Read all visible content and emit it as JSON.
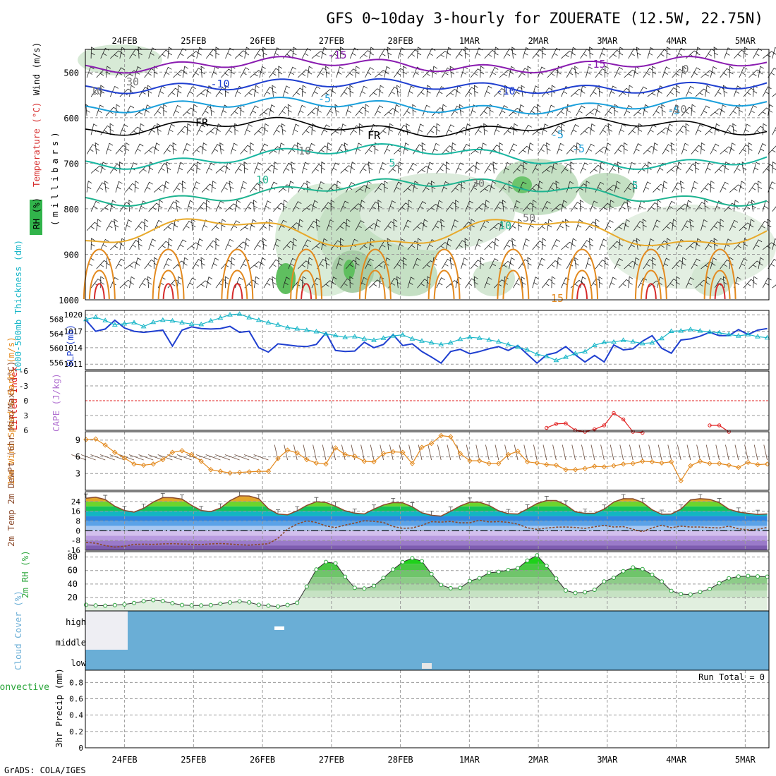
{
  "title": "GFS 0~10day 3-hourly for ZOUERATE (12.5W, 22.75N)",
  "footer": "GrADS: COLA/IGES",
  "colors": {
    "rh_green": "#31b44b",
    "temp_red": "#d62a2a",
    "temp_orange": "#e38a1f",
    "temp_yellow": "#e8a92a",
    "blue": "#1f3fd0",
    "cyan": "#18b6c8",
    "teal": "#18b6a0",
    "purple": "#8a1cb0",
    "dew": "#8b4a2b",
    "cloud": "#6aaed6",
    "rain_green": "#2aa53a",
    "conv_red": "#e22222"
  },
  "chart_data": [
    {
      "panel": "upper-air",
      "type": "heatmap",
      "ylabel_parts": [
        "RH (%)",
        "Temperature (°C)",
        "Wind (m/s)"
      ],
      "ylabel_units": "(millibars)",
      "y_ticks": [
        500,
        600,
        700,
        800,
        900,
        1000
      ],
      "ylim": [
        450,
        1000
      ],
      "x_ticks": [
        "24FEB",
        "25FEB",
        "26FEB",
        "27FEB",
        "28FEB",
        "1MAR",
        "2MAR",
        "3MAR",
        "4MAR",
        "5MAR"
      ],
      "contour_labels": [
        "-15",
        "-15",
        "-10",
        "-10",
        "-5",
        "-5",
        "-5",
        "-5",
        "FR",
        "FR",
        "5",
        "5",
        "10",
        "10",
        "15",
        "30",
        "30",
        "10",
        "10",
        "0",
        "-10",
        "50"
      ]
    },
    {
      "panel": "thickness-slp",
      "type": "line",
      "left_label": "1000-500mb Thickness (dm)",
      "right_label": "SLP (mb)",
      "left_ticks": [
        556,
        560,
        564,
        568
      ],
      "right_ticks": [
        1011,
        1014,
        1017,
        1020
      ],
      "series": [
        {
          "name": "Thickness",
          "color": "#18b6c8",
          "values": [
            568,
            568.6,
            567.7,
            566.5,
            566.8,
            567.1,
            566,
            567.2,
            567.8,
            567.6,
            567.1,
            566.7,
            566.6,
            567.6,
            568.4,
            569.3,
            569.5,
            568.5,
            567.8,
            567.1,
            566.5,
            565.7,
            565.4,
            565,
            564.6,
            564,
            563.5,
            563,
            563.2,
            562.6,
            562.2,
            562.8,
            563.4,
            563.7,
            562.6,
            562,
            561.5,
            561,
            561.5,
            562.5,
            563,
            562.8,
            562.3,
            561.8,
            561,
            560.3,
            559.5,
            558.3,
            557.7,
            556.6,
            557.5,
            558.5,
            559,
            560.8,
            561.6,
            561.7,
            562.2,
            561.8,
            561.3,
            561.5,
            562.7,
            564.7,
            564.8,
            565.2,
            564.8,
            564.5,
            564.3,
            563.8,
            563.4,
            563.8,
            563.2,
            562.9
          ]
        },
        {
          "name": "SLP",
          "color": "#1f3fd0",
          "values": [
            1019,
            1017,
            1017.4,
            1019,
            1017.6,
            1017,
            1016.8,
            1017,
            1017.2,
            1014.3,
            1017.2,
            1017.8,
            1017.5,
            1017.4,
            1017.5,
            1017.9,
            1016.8,
            1017,
            1014,
            1013.2,
            1014.7,
            1014.5,
            1014.3,
            1014.2,
            1014.6,
            1016.7,
            1013.5,
            1013.3,
            1013.4,
            1015,
            1014,
            1014.6,
            1016.4,
            1014.4,
            1014.7,
            1013.3,
            1012.3,
            1011.2,
            1013.3,
            1013.7,
            1012.9,
            1013.3,
            1013.8,
            1014.2,
            1013.5,
            1014.4,
            1012.8,
            1011.2,
            1012.7,
            1013.1,
            1014.2,
            1012.7,
            1011.4,
            1012.6,
            1011.4,
            1014.5,
            1013.6,
            1013.8,
            1015.2,
            1016.2,
            1013.9,
            1013,
            1015.4,
            1015.6,
            1016.1,
            1016.8,
            1016.2,
            1016.2,
            1017.3,
            1016.4,
            1017.2,
            1017.5
          ]
        }
      ]
    },
    {
      "panel": "instability",
      "type": "line",
      "left_label": "Lifted Index",
      "right_label": "CAPE (J/kg)",
      "left_ticks": [
        -6,
        -3,
        0,
        3,
        6
      ],
      "series": [
        {
          "name": "Lifted Index",
          "color": "#e22222",
          "values": [
            null,
            null,
            null,
            null,
            null,
            null,
            null,
            null,
            null,
            null,
            null,
            null,
            null,
            null,
            null,
            null,
            null,
            null,
            null,
            null,
            null,
            null,
            null,
            null,
            null,
            null,
            null,
            null,
            null,
            null,
            null,
            null,
            null,
            null,
            null,
            null,
            null,
            null,
            null,
            null,
            null,
            null,
            null,
            null,
            null,
            null,
            null,
            null,
            5.5,
            4.7,
            4.6,
            6,
            6.3,
            5.8,
            5,
            2.5,
            3.8,
            6.3,
            6.5,
            null,
            null,
            null,
            null,
            null,
            null,
            5,
            5,
            6.3,
            null,
            null,
            null,
            null
          ]
        }
      ]
    },
    {
      "panel": "wind10m",
      "type": "line",
      "ylabel": "10m Wind Speed & Barbs (m/s)",
      "y_ticks": [
        3,
        6,
        9
      ],
      "series": [
        {
          "name": "10m Wind Speed",
          "color": "#e38a1f",
          "values": [
            9.1,
            9.2,
            8.1,
            6.8,
            5.8,
            4.7,
            4.5,
            4.7,
            5.5,
            6.8,
            7.1,
            6.4,
            5.2,
            3.7,
            3.4,
            3.1,
            3.2,
            3.3,
            3.4,
            3.4,
            5.7,
            7.2,
            6.7,
            5.5,
            4.9,
            4.7,
            7.6,
            6.4,
            6.1,
            5.2,
            5.1,
            6.6,
            6.9,
            6.8,
            4.8,
            7.7,
            8.4,
            9.8,
            9.6,
            6.6,
            5.3,
            5.3,
            4.8,
            4.8,
            6.4,
            7,
            5.1,
            4.9,
            4.6,
            4.5,
            3.7,
            3.7,
            3.9,
            4.3,
            4.2,
            4.4,
            4.7,
            4.8,
            5.2,
            5.1,
            4.9,
            5.1,
            1.7,
            4.4,
            5.2,
            4.8,
            4.8,
            4.5,
            4.1,
            5,
            4.6,
            4.7
          ]
        }
      ]
    },
    {
      "panel": "temperature",
      "type": "area",
      "ylabel": "2m Temp 2m DewPt (6hr Min/Max) (°C)",
      "y_ticks": [
        -16,
        -8,
        0,
        8,
        16,
        24
      ],
      "ylim": [
        -16,
        32
      ],
      "series": [
        {
          "name": "2m Temp",
          "color": "#8b4a2b",
          "values": [
            26.7,
            27.5,
            25.6,
            20.1,
            16.6,
            15.2,
            18.4,
            23.5,
            27.2,
            27.1,
            25.9,
            20.8,
            16.6,
            15.7,
            18.6,
            24.7,
            28.6,
            28.5,
            26.3,
            18.1,
            13.7,
            13.1,
            16.3,
            20.8,
            23.8,
            23.2,
            20.1,
            16.4,
            14.4,
            13.8,
            17.7,
            21.1,
            23.1,
            22.9,
            19.6,
            14.7,
            12.7,
            12,
            16,
            20.3,
            23.4,
            23.4,
            20.8,
            16.4,
            14,
            13.7,
            17.9,
            22.3,
            24.8,
            24.8,
            21.1,
            15.5,
            14.3,
            14.3,
            17.7,
            23.5,
            26.3,
            26.2,
            23.2,
            17.2,
            13.5,
            13.7,
            17.7,
            25.3,
            26.3,
            25.8,
            23,
            17.7,
            15.3,
            14.3,
            13.4,
            13.8
          ]
        },
        {
          "name": "2m DewPt",
          "color": "#8b4a2b",
          "values": [
            -9.5,
            -10.2,
            -12.2,
            -13.4,
            -12.7,
            -11.2,
            -11,
            -11.2,
            -10.8,
            -10.6,
            -10.9,
            -11.2,
            -11.3,
            -10.8,
            -10.5,
            -10.9,
            -11.5,
            -11.8,
            -11.2,
            -10.7,
            -6.1,
            1.3,
            5.5,
            8.1,
            6.8,
            3.9,
            2.6,
            4.6,
            6.3,
            8.2,
            7.7,
            6.8,
            3.5,
            2,
            2.3,
            4.4,
            7.4,
            7.1,
            7.6,
            6.5,
            6.5,
            8.6,
            7.2,
            7.5,
            6.9,
            5.4,
            2.4,
            1.1,
            2.2,
            2.9,
            3.1,
            2.7,
            1.9,
            3.2,
            4.4,
            3,
            3.4,
            1.2,
            -0.8,
            2.4,
            4.5,
            2.5,
            3.8,
            3,
            3,
            2.6,
            2.3,
            3.7,
            1.6,
            0.8,
            1.2,
            2.7
          ]
        }
      ]
    },
    {
      "panel": "rh2m",
      "type": "area",
      "ylabel": "2m RH (%)",
      "y_ticks": [
        20,
        40,
        60,
        80
      ],
      "series": [
        {
          "name": "2m RH",
          "color": "#2aa53a",
          "values": [
            9,
            8.1,
            7.7,
            8.7,
            9.6,
            11.8,
            14.4,
            16.1,
            14.6,
            11.4,
            8.8,
            8.2,
            8.1,
            8.7,
            10.8,
            12.6,
            14.1,
            12.7,
            9.1,
            7.8,
            6.5,
            8.8,
            12.1,
            36.2,
            61.6,
            72.7,
            70.6,
            50.7,
            34.3,
            33.2,
            37.1,
            49.1,
            61.6,
            72.6,
            78.3,
            73.9,
            54.8,
            38.5,
            33.7,
            34.2,
            44.4,
            48.6,
            56.6,
            58,
            60.8,
            63.4,
            74.8,
            82.5,
            66.9,
            48.1,
            30.4,
            26.7,
            27.8,
            31.4,
            43.7,
            49.3,
            58.9,
            64.5,
            62.1,
            53.8,
            43.7,
            29.7,
            25.1,
            24.4,
            28.1,
            32.6,
            41.2,
            48.4,
            51.1,
            51.9,
            51.2,
            50.8
          ]
        }
      ]
    },
    {
      "panel": "cloud",
      "type": "heatmap",
      "ylabel": "Cloud Cover (%)",
      "levels": [
        "high",
        "middle",
        "low"
      ]
    },
    {
      "panel": "precip",
      "type": "bar",
      "ylabel_left": "Total / Rain Convective",
      "ylabel": "3hr Precip (mm)",
      "y_ticks": [
        0,
        0.2,
        0.4,
        0.6,
        0.8
      ],
      "annotation": "Run Total = 0"
    }
  ]
}
